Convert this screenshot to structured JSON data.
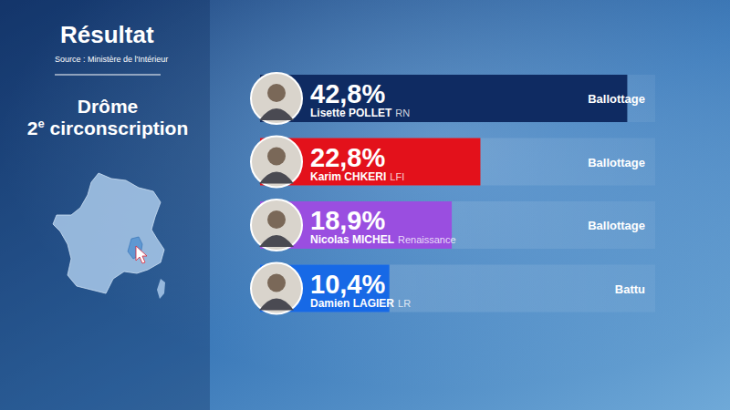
{
  "chart_data": {
    "type": "bar",
    "orientation": "horizontal",
    "title": "Résultat",
    "subtitle": "Source : Ministère de l'Intérieur",
    "annotations": [
      "Drôme",
      "2e circonscription"
    ],
    "categories": [
      "Lisette POLLET",
      "Karim CHKERI",
      "Nicolas MICHEL",
      "Damien LAGIER"
    ],
    "parties": [
      "RN",
      "LFI",
      "Renaissance",
      "LR"
    ],
    "statuses": [
      "Ballottage",
      "Ballottage",
      "Ballottage",
      "Battu"
    ],
    "values": [
      42.8,
      22.8,
      18.9,
      10.4
    ],
    "value_labels": [
      "42,8%",
      "22,8%",
      "18,9%",
      "10,4%"
    ],
    "colors": [
      "#0f2b62",
      "#e3111b",
      "#9a4ee0",
      "#1769e6"
    ],
    "xlim": [
      0,
      46.6
    ],
    "data_labels": true,
    "tick_labels": false
  }
}
